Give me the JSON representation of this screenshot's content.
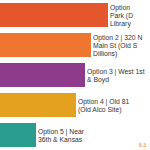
{
  "chart_data": {
    "type": "bar",
    "orientation": "horizontal",
    "categories": [
      "Option\nPark (D\nLibrary",
      "Option 2 | 320 N\nMain St (Old S\nDillions)",
      "Option 3 | West 1st\n& Boyd",
      "Option 4 | Old 81\n(Old Alco Site)",
      "Option 5 | Near\n36th & Kansas"
    ],
    "values": [
      108,
      91,
      85,
      76,
      36
    ],
    "colors": [
      "#e4562e",
      "#ef7630",
      "#8e3b8c",
      "#e4a11f",
      "#2a9d8f"
    ],
    "xlim": [
      0,
      150
    ],
    "tick_labels": false,
    "grid": false,
    "data_labels": false,
    "annotation": "6.3"
  }
}
